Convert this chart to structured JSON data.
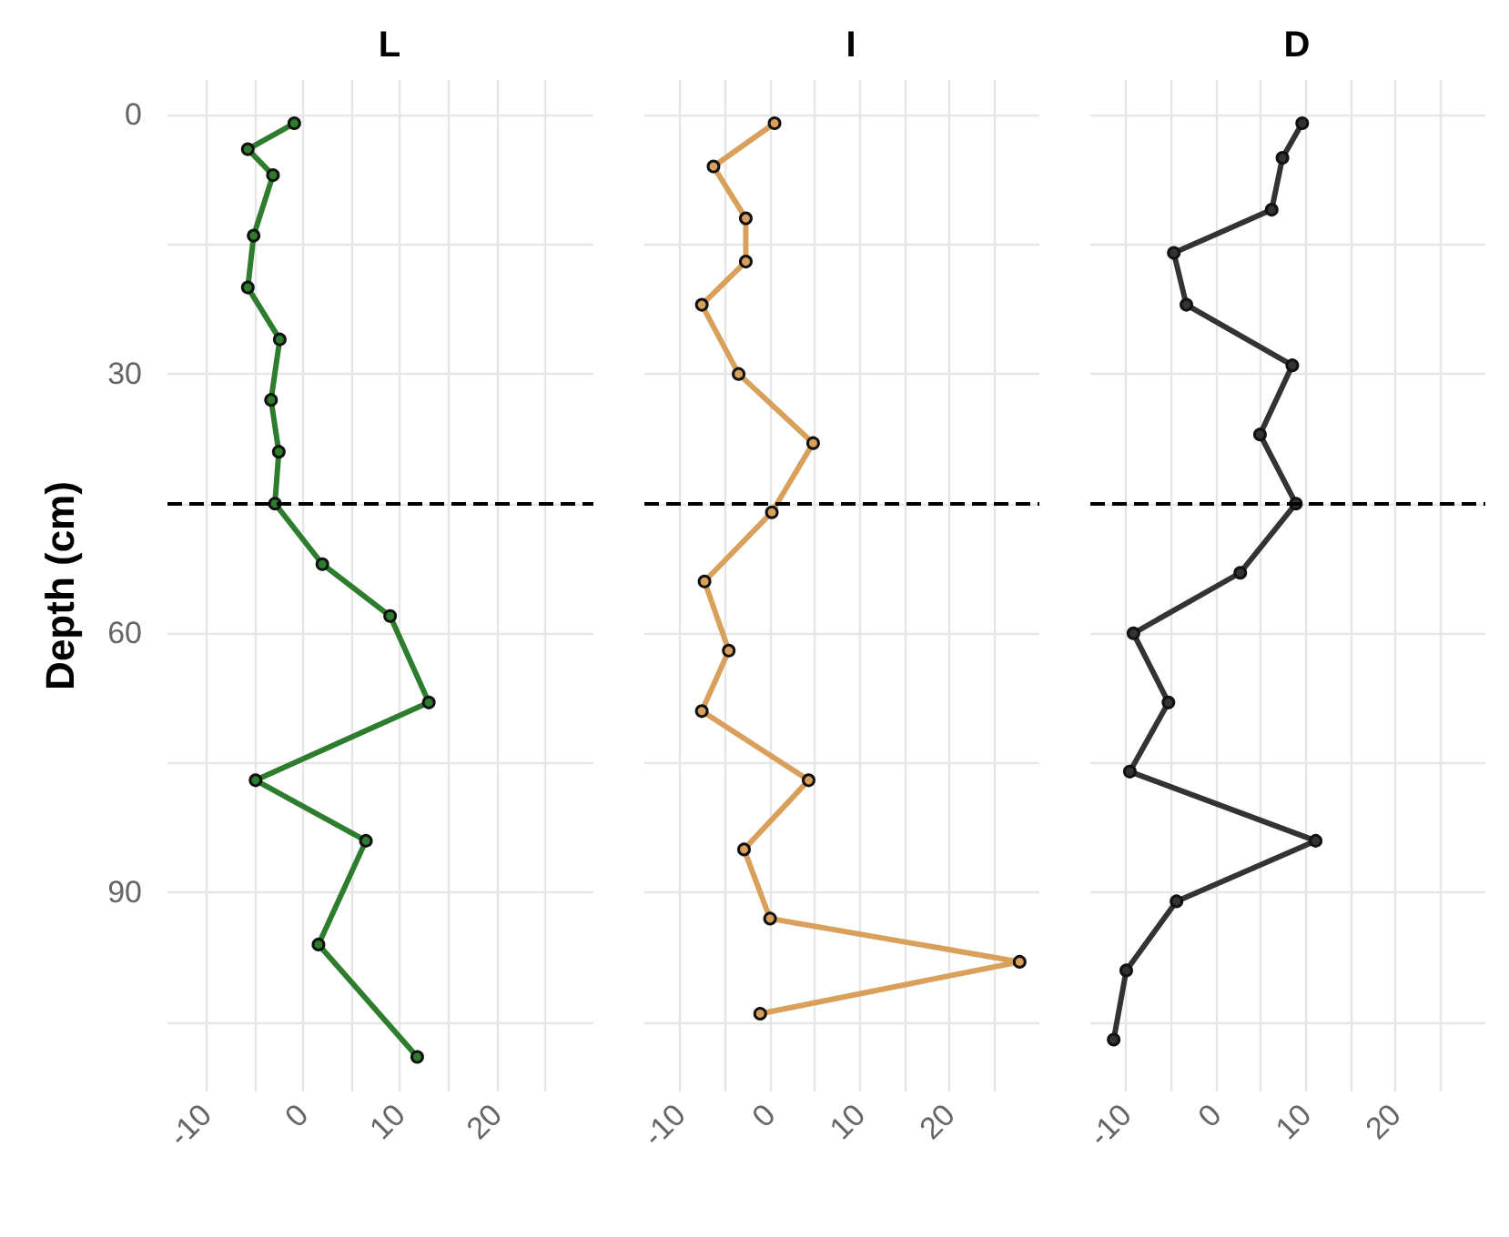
{
  "chart_data": [
    {
      "type": "line",
      "title": "L",
      "ylabel": "Depth (cm)",
      "xlim": [
        -14,
        30
      ],
      "ylim": [
        113,
        -4
      ],
      "xticks": [
        {
          "value": -10,
          "label": "-10"
        },
        {
          "value": -5,
          "label": null
        },
        0,
        {
          "value": 5,
          "label": null
        },
        10,
        {
          "value": 15,
          "label": null
        },
        20,
        {
          "value": 25,
          "label": null
        }
      ],
      "yticks": [
        0,
        {
          "value": 15,
          "label": null
        },
        30,
        {
          "value": 45,
          "label": null
        },
        60,
        {
          "value": 75,
          "label": null
        },
        90,
        {
          "value": 105,
          "label": null
        }
      ],
      "grid": true,
      "marker": "circle",
      "line_style": "solid",
      "ref_lines": [
        {
          "axis": "y",
          "value": 45,
          "line_style": "dashed",
          "color": "#000000"
        }
      ],
      "series": [
        {
          "color": "#2e7d2e",
          "x": [
            -0.9,
            -5.7,
            -3.1,
            -5.1,
            -5.7,
            -2.4,
            -3.3,
            -2.5,
            -2.9,
            2,
            9,
            13,
            -4.9,
            6.5,
            1.6,
            11.8
          ],
          "values": [
            1,
            4,
            7,
            14,
            20,
            26,
            33,
            39,
            45,
            52,
            58,
            68,
            77,
            84,
            96,
            109
          ]
        }
      ]
    },
    {
      "type": "line",
      "title": "I",
      "xlim": [
        -14,
        30
      ],
      "ylim": [
        113,
        -4
      ],
      "xticks": [
        {
          "value": -10,
          "label": "-10"
        },
        {
          "value": -5,
          "label": null
        },
        0,
        {
          "value": 5,
          "label": null
        },
        10,
        {
          "value": 15,
          "label": null
        },
        20,
        {
          "value": 25,
          "label": null
        }
      ],
      "yticks": [
        0,
        {
          "value": 15,
          "label": null
        },
        30,
        {
          "value": 45,
          "label": null
        },
        60,
        {
          "value": 75,
          "label": null
        },
        90,
        {
          "value": 105,
          "label": null
        }
      ],
      "tick_labels": "x",
      "grid": true,
      "marker": "circle",
      "line_style": "solid",
      "ref_lines": [
        {
          "axis": "y",
          "value": 45,
          "line_style": "dashed",
          "color": "#000000"
        }
      ],
      "series": [
        {
          "color": "#d9a05b",
          "x": [
            0.5,
            -6.3,
            -2.7,
            -2.7,
            -7.6,
            -3.5,
            4.8,
            0.2,
            -7.3,
            -4.6,
            -7.6,
            4.3,
            -2.9,
            0,
            27.8,
            -1.1
          ],
          "values": [
            1,
            6,
            12,
            17,
            22,
            30,
            38,
            46,
            54,
            62,
            69,
            77,
            85,
            93,
            98,
            104
          ]
        }
      ]
    },
    {
      "type": "line",
      "title": "D",
      "xlim": [
        -14,
        30
      ],
      "ylim": [
        113,
        -4
      ],
      "xticks": [
        {
          "value": -10,
          "label": "-10"
        },
        {
          "value": -5,
          "label": null
        },
        0,
        {
          "value": 5,
          "label": null
        },
        10,
        {
          "value": 15,
          "label": null
        },
        20,
        {
          "value": 25,
          "label": null
        }
      ],
      "yticks": [
        0,
        {
          "value": 15,
          "label": null
        },
        30,
        {
          "value": 45,
          "label": null
        },
        60,
        {
          "value": 75,
          "label": null
        },
        90,
        {
          "value": 105,
          "label": null
        }
      ],
      "tick_labels": "x",
      "grid": true,
      "marker": "circle",
      "line_style": "solid",
      "ref_lines": [
        {
          "axis": "y",
          "value": 45,
          "line_style": "dashed",
          "color": "#000000"
        }
      ],
      "series": [
        {
          "color": "#333333",
          "x": [
            9.6,
            7.4,
            6.2,
            -4.7,
            -3.3,
            8.5,
            4.9,
            8.9,
            2.7,
            -9.2,
            -5.3,
            -9.6,
            11.1,
            -4.4,
            -10,
            -11.4
          ],
          "values": [
            1,
            5,
            11,
            16,
            22,
            29,
            37,
            45,
            53,
            60,
            68,
            76,
            84,
            91,
            99,
            107
          ]
        }
      ]
    }
  ]
}
